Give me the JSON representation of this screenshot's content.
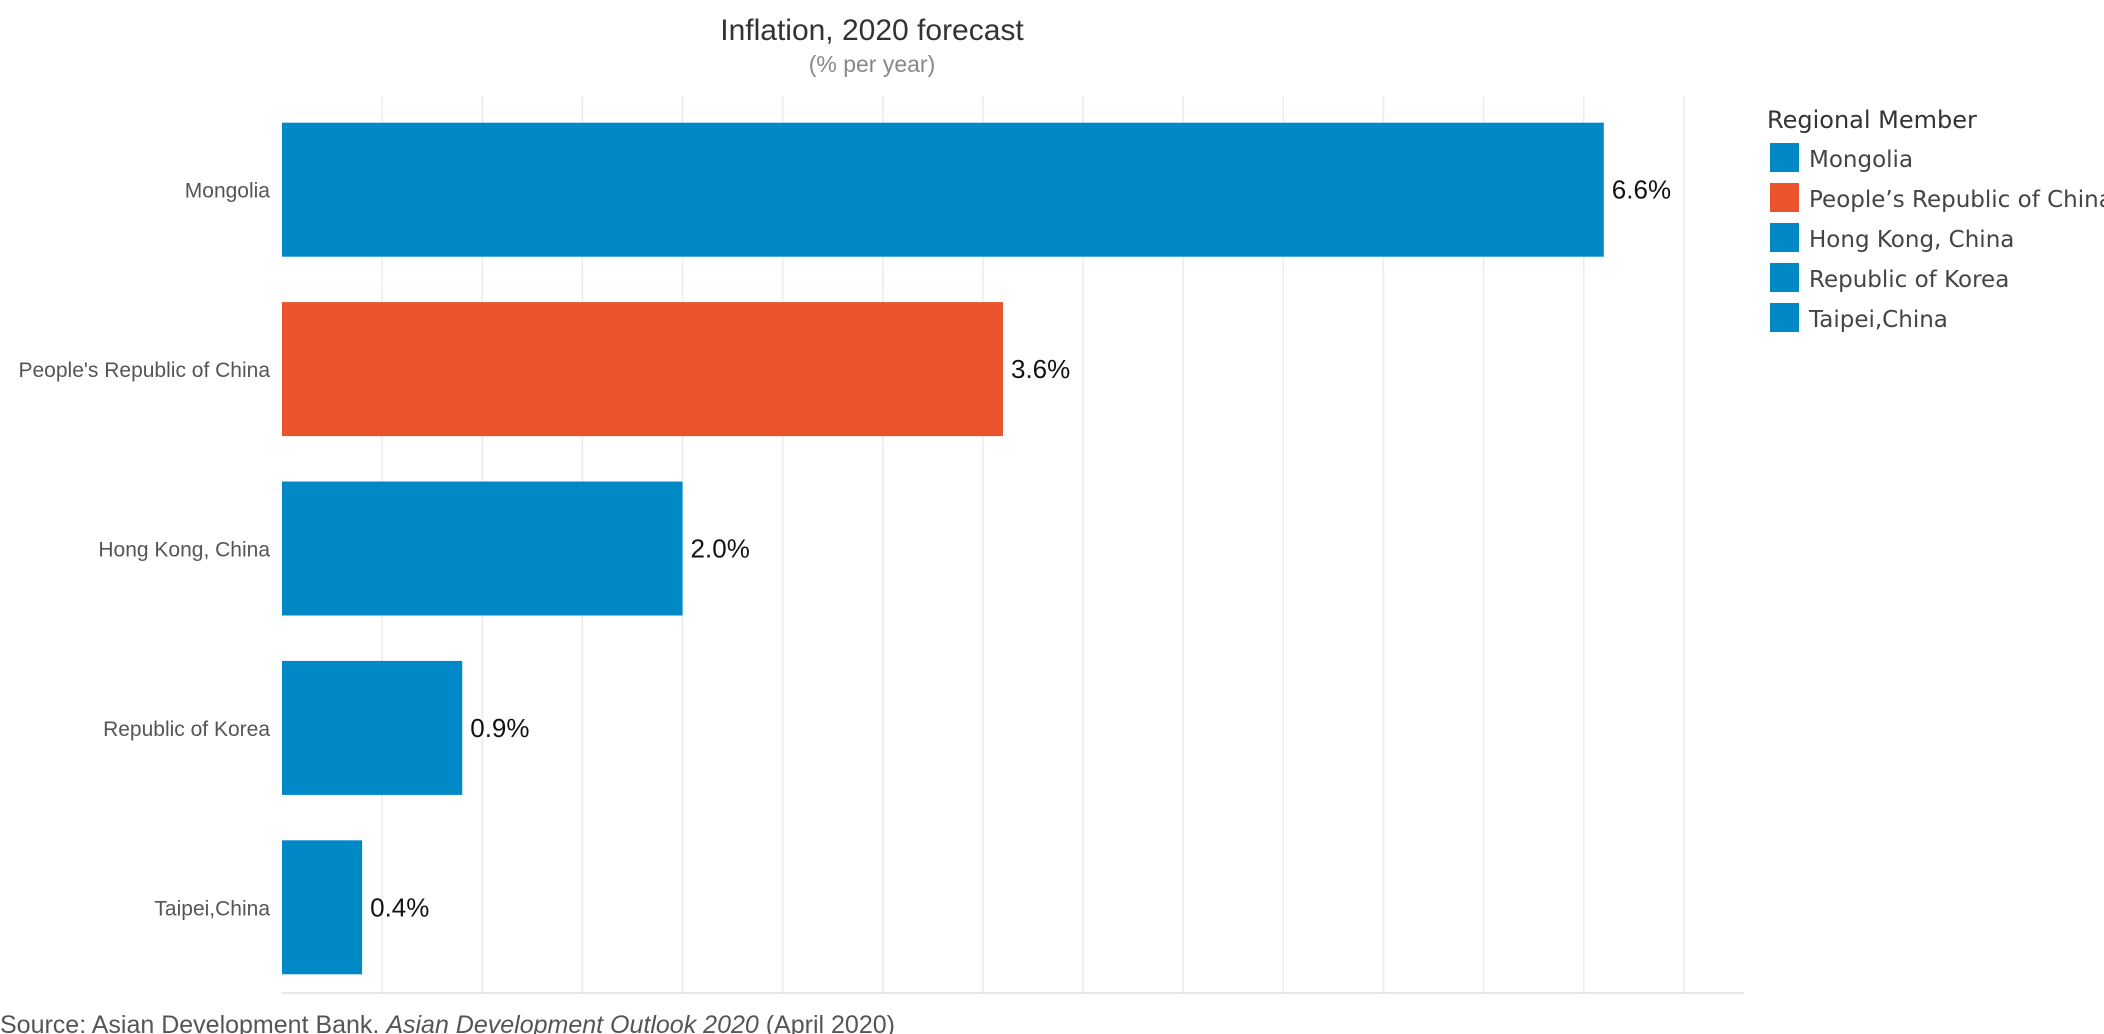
{
  "chart_data": {
    "type": "bar",
    "orientation": "horizontal",
    "title": "Inflation, 2020 forecast",
    "subtitle": "(% per year)",
    "categories": [
      "Mongolia",
      "People's Republic of China",
      "Hong Kong, China",
      "Republic of Korea",
      "Taipei,China"
    ],
    "values": [
      6.6,
      3.6,
      2.0,
      0.9,
      0.4
    ],
    "value_labels": [
      "6.6%",
      "3.6%",
      "2.0%",
      "0.9%",
      "0.4%"
    ],
    "bar_colors": [
      "#0189C7",
      "#E9542C",
      "#0189C7",
      "#0189C7",
      "#0189C7"
    ],
    "xlim": [
      0,
      7.3
    ],
    "grid_step": 0.5,
    "grid": true,
    "xlabel": "",
    "ylabel": "",
    "legend": {
      "title": "Regional Member",
      "placement": "right",
      "items": [
        {
          "label": "Mongolia",
          "color": "#0189C7"
        },
        {
          "label": "People’s Republic of China",
          "color": "#E9542C"
        },
        {
          "label": "Hong Kong, China",
          "color": "#0189C7"
        },
        {
          "label": "Republic of Korea",
          "color": "#0189C7"
        },
        {
          "label": "Taipei,China",
          "color": "#0189C7"
        }
      ]
    }
  },
  "source": {
    "prefix": "Source: Asian Development Bank. ",
    "publication": "Asian Development Outlook 2020",
    "suffix": " (April 2020)"
  },
  "colors": {
    "grid": "#EBEBEB",
    "axis_line": "#E0E0E0",
    "category_label": "#555555",
    "value_label": "#111111",
    "title": "#333333",
    "subtitle": "#888888",
    "source": "#555555"
  }
}
